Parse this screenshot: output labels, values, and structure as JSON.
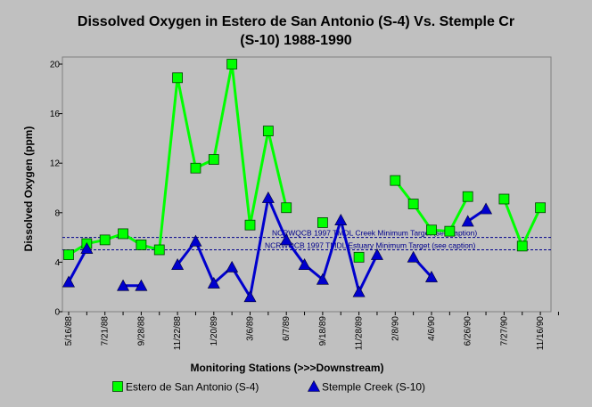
{
  "chart_data": {
    "type": "line",
    "title_line1": "Dissolved Oxygen in Estero de San Antonio (S-4) Vs. Stemple Cr",
    "title_line2": "(S-10) 1988-1990",
    "xlabel": "Monitoring Stations (>>>Downstream)",
    "ylabel": "Dissolved Oxygen (ppm)",
    "ylim": [
      0,
      20
    ],
    "yticks": [
      0,
      4,
      8,
      12,
      16,
      20
    ],
    "grid": false,
    "legend_placement": "bottom",
    "x_slots": 28,
    "xticks": [
      {
        "slot": 0,
        "label": "5/16/88"
      },
      {
        "slot": 2,
        "label": "7/21/88"
      },
      {
        "slot": 4,
        "label": "9/28/88"
      },
      {
        "slot": 6,
        "label": "11/22/88"
      },
      {
        "slot": 8,
        "label": "1/20/89"
      },
      {
        "slot": 10,
        "label": "3/6/89"
      },
      {
        "slot": 12,
        "label": "6/7/89"
      },
      {
        "slot": 14,
        "label": "9/18/89"
      },
      {
        "slot": 16,
        "label": "11/28/89"
      },
      {
        "slot": 18,
        "label": "2/8/90"
      },
      {
        "slot": 20,
        "label": "4/6/90"
      },
      {
        "slot": 22,
        "label": "6/26/90"
      },
      {
        "slot": 24,
        "label": "7/27/90"
      },
      {
        "slot": 26,
        "label": "11/16/90"
      }
    ],
    "series": [
      {
        "name": "Estero de San Antonio (S-4)",
        "color": "#00ff00",
        "marker": "square",
        "segments": [
          [
            [
              0,
              4.6
            ],
            [
              1,
              5.5
            ],
            [
              2,
              5.8
            ],
            [
              3,
              6.3
            ],
            [
              4,
              5.4
            ],
            [
              5,
              5.0
            ],
            [
              6,
              18.9
            ],
            [
              7,
              11.6
            ],
            [
              8,
              12.3
            ],
            [
              9,
              20.0
            ],
            [
              10,
              7.0
            ],
            [
              11,
              14.6
            ],
            [
              12,
              8.4
            ]
          ],
          [
            [
              14,
              7.2
            ]
          ],
          [
            [
              16,
              4.4
            ]
          ],
          [
            [
              18,
              10.6
            ],
            [
              19,
              8.7
            ],
            [
              20,
              6.6
            ],
            [
              21,
              6.5
            ],
            [
              22,
              9.3
            ]
          ],
          [
            [
              24,
              9.1
            ],
            [
              25,
              5.3
            ],
            [
              26,
              8.4
            ]
          ]
        ]
      },
      {
        "name": "Stemple Creek (S-10)",
        "color": "#0000cd",
        "marker": "triangle",
        "segments": [
          [
            [
              0,
              2.4
            ],
            [
              1,
              5.1
            ]
          ],
          [
            [
              3,
              2.1
            ],
            [
              4,
              2.1
            ]
          ],
          [
            [
              6,
              3.8
            ],
            [
              7,
              5.7
            ],
            [
              8,
              2.3
            ],
            [
              9,
              3.6
            ],
            [
              10,
              1.2
            ],
            [
              11,
              9.2
            ],
            [
              12,
              5.8
            ],
            [
              13,
              3.8
            ],
            [
              14,
              2.6
            ],
            [
              15,
              7.4
            ],
            [
              16,
              1.6
            ],
            [
              17,
              4.6
            ]
          ],
          [
            [
              19,
              4.4
            ],
            [
              20,
              2.8
            ]
          ],
          [
            [
              22,
              7.3
            ],
            [
              23,
              8.3
            ]
          ]
        ]
      }
    ],
    "reference_lines": [
      {
        "value": 6.0,
        "label": "NCRWQCB 1997 TMDL Creek Minimum Target (see caption)",
        "color": "#00008b"
      },
      {
        "value": 5.0,
        "label": "NCRWQCB 1997 TMDL Estuary Minimum Target (see caption)",
        "color": "#00008b"
      }
    ]
  }
}
